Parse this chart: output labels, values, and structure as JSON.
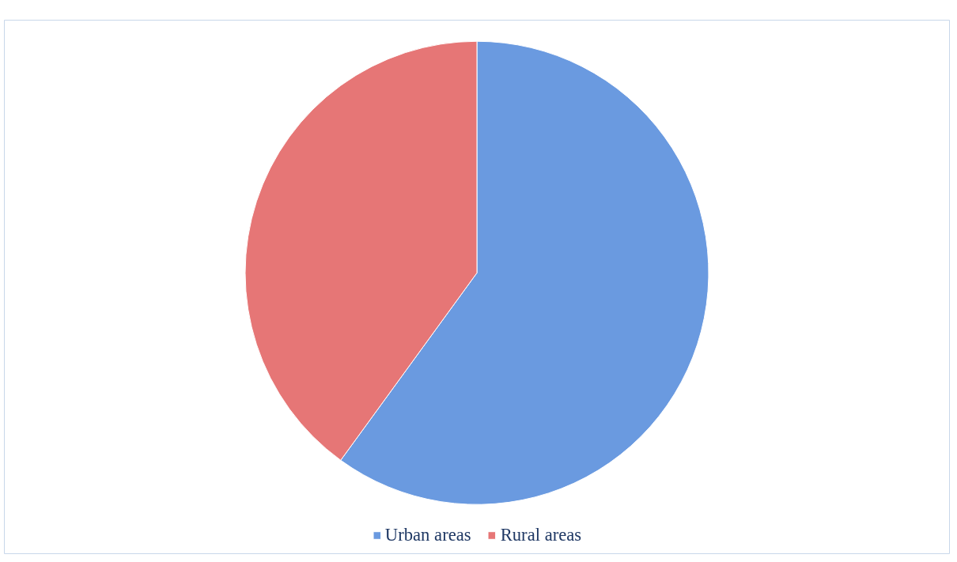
{
  "chart_data": {
    "type": "pie",
    "categories": [
      "Urban areas",
      "Rural areas"
    ],
    "values": [
      60,
      40
    ],
    "colors": [
      "#6a9ae0",
      "#e67676"
    ],
    "legend": "bottom"
  }
}
